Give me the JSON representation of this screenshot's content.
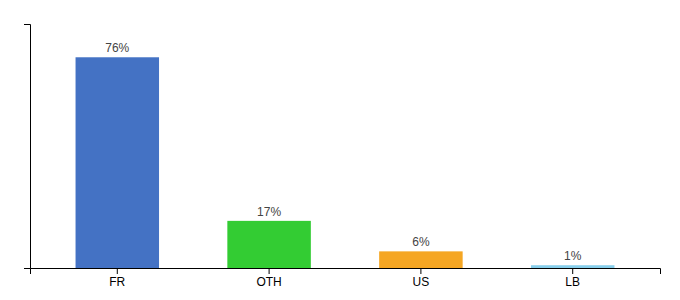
{
  "chart_data": {
    "type": "bar",
    "categories": [
      "FR",
      "OTH",
      "US",
      "LB"
    ],
    "values": [
      76,
      17,
      6,
      1
    ],
    "value_labels": [
      "76%",
      "17%",
      "6%",
      "1%"
    ],
    "colors": [
      "#4472c4",
      "#33cc33",
      "#f5a623",
      "#87ceeb"
    ],
    "ylim": [
      0,
      88
    ],
    "yticks": [],
    "grid": false,
    "data_labels": true,
    "tick_labels": "x"
  }
}
